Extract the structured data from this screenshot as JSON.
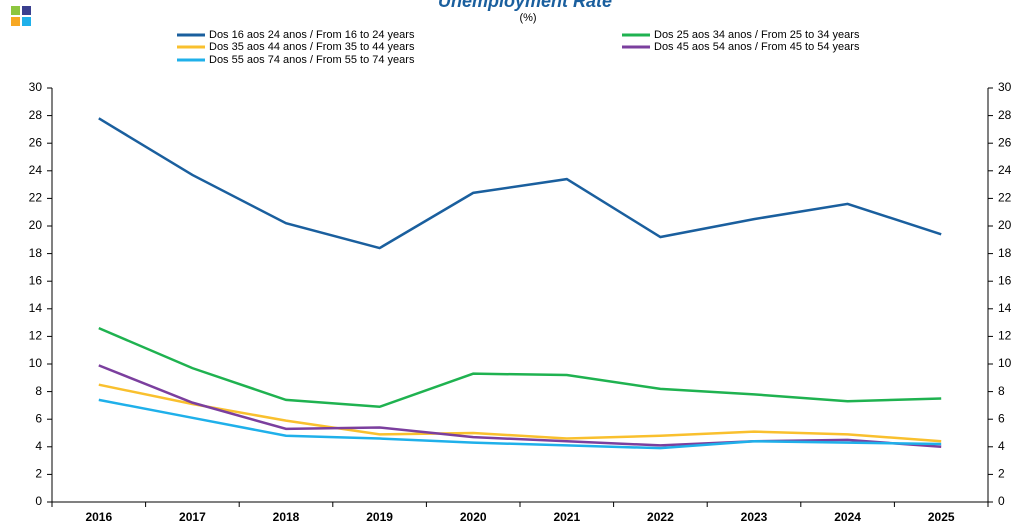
{
  "chart_data": {
    "type": "line",
    "title": "Unemployment Rate",
    "subtitle": "(%)",
    "categories": [
      "2016",
      "2017",
      "2018",
      "2019",
      "2020",
      "2021",
      "2022",
      "2023",
      "2024",
      "2025"
    ],
    "series": [
      {
        "name": "Dos 16 aos 24 anos / From 16 to 24 years",
        "color": "#1a5f9e",
        "values": [
          27.8,
          23.7,
          20.2,
          18.4,
          22.4,
          23.4,
          19.2,
          20.5,
          21.6,
          19.4
        ]
      },
      {
        "name": "Dos 25 aos 34 anos / From 25 to 34 years",
        "color": "#1fb250",
        "values": [
          12.6,
          9.7,
          7.4,
          6.9,
          9.3,
          9.2,
          8.2,
          7.8,
          7.3,
          7.5
        ]
      },
      {
        "name": "Dos 35 aos 44 anos / From 35 to 44 years",
        "color": "#f9c02e",
        "values": [
          8.5,
          7.1,
          5.9,
          4.9,
          5.0,
          4.6,
          4.8,
          5.1,
          4.9,
          4.4
        ]
      },
      {
        "name": "Dos 45 aos 54 anos / From 45 to 54 years",
        "color": "#7b3f9e",
        "values": [
          9.9,
          7.2,
          5.3,
          5.4,
          4.7,
          4.4,
          4.1,
          4.4,
          4.5,
          4.0
        ]
      },
      {
        "name": "Dos 55 aos 74 anos / From 55 to 74 years",
        "color": "#1fb0ea",
        "values": [
          7.4,
          6.1,
          4.8,
          4.6,
          4.3,
          4.1,
          3.9,
          4.4,
          4.3,
          4.2
        ]
      }
    ],
    "ylim": [
      0,
      30
    ],
    "yticks": [
      0,
      2,
      4,
      6,
      8,
      10,
      12,
      14,
      16,
      18,
      20,
      22,
      24,
      26,
      28,
      30
    ]
  }
}
